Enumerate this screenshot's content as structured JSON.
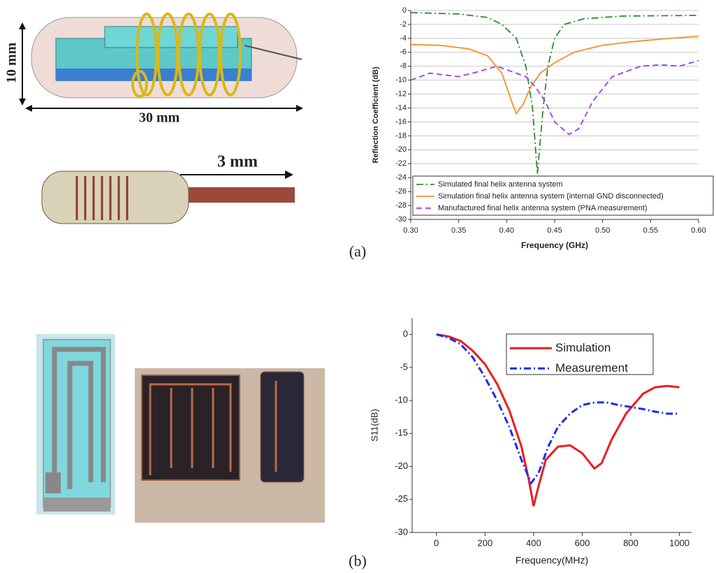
{
  "figure": {
    "dimensions": [
      "10 mm",
      "30 mm",
      "3 mm"
    ],
    "panel_labels": [
      "(a)",
      "(b)"
    ]
  },
  "chart_data": [
    {
      "type": "line",
      "xlabel": "Frequency (GHz)",
      "ylabel": "Reflection Coefficient (dB)",
      "xlim": [
        0.3,
        0.6
      ],
      "ylim": [
        -30,
        0
      ],
      "xticks": [
        {
          "value": 0.3,
          "label": "0.30"
        },
        0.35,
        {
          "value": 0.4,
          "label": "0.40"
        },
        0.45,
        {
          "value": 0.5,
          "label": "0.50"
        },
        0.55,
        {
          "value": 0.6,
          "label": "0.60"
        }
      ],
      "yticks": [
        0,
        -2,
        -4,
        -6,
        -8,
        -10,
        -12,
        -14,
        -16,
        -18,
        -20,
        -22,
        -24,
        -26,
        -28,
        -30
      ],
      "grid": true,
      "legend": "lower left",
      "series": [
        {
          "name": "Simulated final helix antenna system",
          "color": "#2e8b2e",
          "line_style": "dashdot",
          "x": [
            0.3,
            0.35,
            0.38,
            0.395,
            0.41,
            0.42,
            0.427,
            0.432,
            0.438,
            0.443,
            0.45,
            0.46,
            0.48,
            0.52,
            0.6
          ],
          "values": [
            -0.3,
            -0.5,
            -1,
            -2,
            -4,
            -8,
            -14,
            -23.5,
            -14,
            -8,
            -4,
            -2,
            -1.2,
            -0.8,
            -0.7
          ]
        },
        {
          "name": "Simulation final helix antenna system (internal GND disconnected)",
          "color": "#f5902a",
          "line_style": "solid",
          "x": [
            0.3,
            0.33,
            0.36,
            0.38,
            0.395,
            0.405,
            0.41,
            0.417,
            0.425,
            0.435,
            0.45,
            0.47,
            0.5,
            0.53,
            0.57,
            0.6
          ],
          "values": [
            -4.9,
            -5,
            -5.5,
            -6.5,
            -9,
            -13,
            -14.8,
            -13.5,
            -11,
            -9,
            -7.5,
            -6,
            -5,
            -4.5,
            -4,
            -3.7
          ]
        },
        {
          "name": "Manufactured final helix antenna system (PNA measurement)",
          "color": "#9b3fe0",
          "line_style": "dashed",
          "x": [
            0.3,
            0.32,
            0.35,
            0.37,
            0.39,
            0.4,
            0.42,
            0.43,
            0.44,
            0.45,
            0.465,
            0.475,
            0.49,
            0.51,
            0.54,
            0.56,
            0.58,
            0.6
          ],
          "values": [
            -10,
            -9,
            -9.5,
            -8.8,
            -8,
            -8.5,
            -9.5,
            -11,
            -13,
            -16,
            -17.8,
            -17,
            -13,
            -9.5,
            -8,
            -7.8,
            -8,
            -7.2
          ]
        }
      ]
    },
    {
      "type": "line",
      "xlabel": "Frequency(MHz)",
      "ylabel": "S11(dB)",
      "xlim": [
        -100,
        1050
      ],
      "ylim": [
        -30,
        2.5
      ],
      "xticks": [
        0,
        200,
        400,
        600,
        800,
        1000
      ],
      "yticks": [
        0,
        -5,
        -10,
        -15,
        -20,
        -25,
        -30
      ],
      "grid": false,
      "legend": "upper right",
      "series": [
        {
          "name": "Simulation",
          "color": "#ee1c1c",
          "line_style": "solid",
          "x": [
            0,
            50,
            100,
            150,
            200,
            250,
            300,
            350,
            380,
            400,
            420,
            450,
            500,
            550,
            600,
            650,
            680,
            720,
            780,
            850,
            900,
            950,
            1000
          ],
          "values": [
            0,
            -0.3,
            -1,
            -2.5,
            -4.5,
            -7.5,
            -11.5,
            -17,
            -22,
            -26,
            -23,
            -19,
            -17,
            -16.8,
            -18,
            -20.3,
            -19.5,
            -16,
            -12,
            -9,
            -8,
            -7.8,
            -8
          ]
        },
        {
          "name": "Measurement",
          "color": "#1c2cee",
          "line_style": "dashdot",
          "x": [
            0,
            50,
            100,
            150,
            200,
            250,
            300,
            350,
            390,
            420,
            460,
            500,
            550,
            600,
            650,
            700,
            750,
            800,
            850,
            900,
            950,
            1000
          ],
          "values": [
            0,
            -0.5,
            -1.5,
            -3.5,
            -6.5,
            -10,
            -14,
            -19,
            -22.5,
            -21,
            -17,
            -14,
            -12,
            -10.7,
            -10.3,
            -10.3,
            -10.7,
            -11,
            -11.3,
            -11.7,
            -12,
            -12
          ]
        }
      ]
    }
  ]
}
